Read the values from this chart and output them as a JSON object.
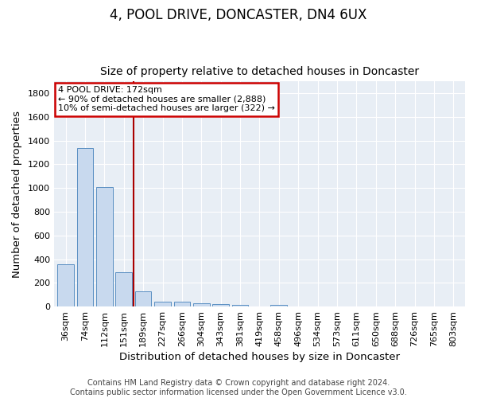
{
  "title": "4, POOL DRIVE, DONCASTER, DN4 6UX",
  "subtitle": "Size of property relative to detached houses in Doncaster",
  "xlabel": "Distribution of detached houses by size in Doncaster",
  "ylabel": "Number of detached properties",
  "categories": [
    "36sqm",
    "74sqm",
    "112sqm",
    "151sqm",
    "189sqm",
    "227sqm",
    "266sqm",
    "304sqm",
    "343sqm",
    "381sqm",
    "419sqm",
    "458sqm",
    "496sqm",
    "534sqm",
    "573sqm",
    "611sqm",
    "650sqm",
    "688sqm",
    "726sqm",
    "765sqm",
    "803sqm"
  ],
  "values": [
    355,
    1340,
    1010,
    290,
    130,
    42,
    42,
    30,
    18,
    15,
    0,
    14,
    0,
    0,
    0,
    0,
    0,
    0,
    0,
    0,
    0
  ],
  "bar_color": "#c8d9ee",
  "bar_edge_color": "#5a8fc2",
  "vline_color": "#aa0000",
  "vline_x_idx": 3.5,
  "annotation_text": "4 POOL DRIVE: 172sqm\n← 90% of detached houses are smaller (2,888)\n10% of semi-detached houses are larger (322) →",
  "annotation_box_color": "white",
  "annotation_box_edge_color": "#cc0000",
  "ylim": [
    0,
    1900
  ],
  "yticks": [
    0,
    200,
    400,
    600,
    800,
    1000,
    1200,
    1400,
    1600,
    1800
  ],
  "footer_text": "Contains HM Land Registry data © Crown copyright and database right 2024.\nContains public sector information licensed under the Open Government Licence v3.0.",
  "fig_bg_color": "#ffffff",
  "plot_bg_color": "#e8eef5",
  "title_fontsize": 12,
  "subtitle_fontsize": 10,
  "axis_label_fontsize": 9.5,
  "tick_fontsize": 8,
  "annotation_fontsize": 8,
  "footer_fontsize": 7
}
